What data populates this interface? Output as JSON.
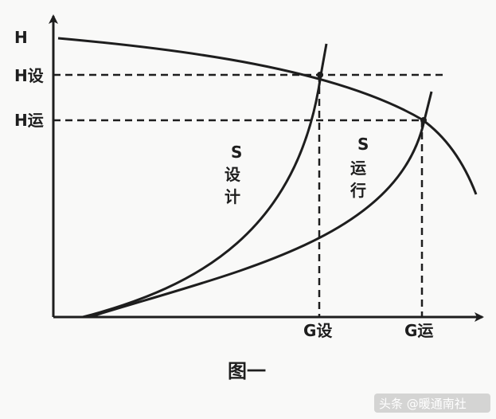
{
  "y_axis": {
    "tick_h": "H",
    "tick_h_design": "H设",
    "tick_h_run": "H运"
  },
  "x_axis": {
    "tick_g_design": "G设",
    "tick_g_run": "G运"
  },
  "curves": {
    "design_s": "S",
    "design_line1": "设",
    "design_line2": "计",
    "run_s": "S",
    "run_line1": "运",
    "run_line2": "行"
  },
  "caption": "图一",
  "watermark": "头条 @暖通南社",
  "colors": {
    "ink": "#1e1e1e",
    "background": "#f9f9f8"
  }
}
